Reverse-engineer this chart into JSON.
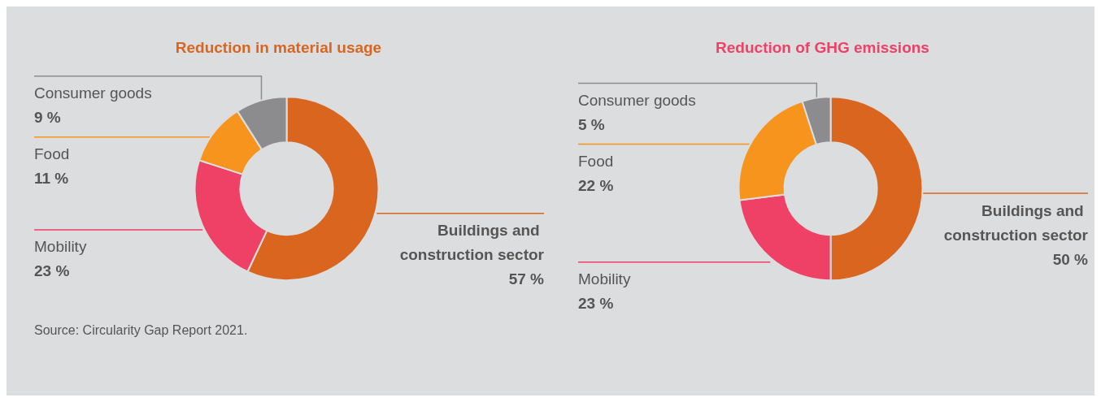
{
  "chart_data": [
    {
      "type": "donut",
      "title": "Reduction in material usage",
      "categories": [
        "Buildings and construction sector",
        "Mobility",
        "Food",
        "Consumer goods"
      ],
      "values": [
        57,
        23,
        11,
        9
      ],
      "value_labels": [
        "57 %",
        "23 %",
        "11 %",
        "9 %"
      ],
      "colors": [
        "#d9651e",
        "#ef4065",
        "#f7941d",
        "#8c8c8e"
      ],
      "annotations": [
        "Source: Circularity Gap Report 2021."
      ]
    },
    {
      "type": "donut",
      "title": "Reduction of GHG emissions",
      "categories": [
        "Buildings and construction sector",
        "Mobility",
        "Food",
        "Consumer goods"
      ],
      "values": [
        50,
        23,
        22,
        5
      ],
      "value_labels": [
        "50 %",
        "23 %",
        "22 %",
        "5 %"
      ],
      "colors": [
        "#d9651e",
        "#ef4065",
        "#f7941d",
        "#8c8c8e"
      ]
    }
  ]
}
